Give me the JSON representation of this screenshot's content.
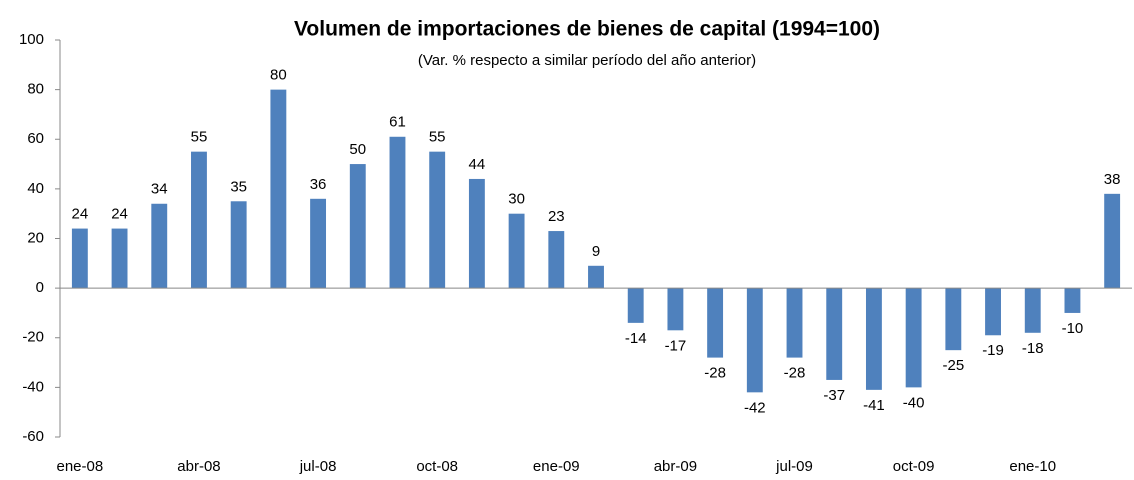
{
  "chart_data": {
    "type": "bar",
    "title": "Volumen de importaciones de bienes de capital (1994=100)",
    "subtitle": "(Var. % respecto a similar período del año anterior)",
    "categories": [
      "ene-08",
      null,
      null,
      "abr-08",
      null,
      null,
      "jul-08",
      null,
      null,
      "oct-08",
      null,
      null,
      "ene-09",
      null,
      null,
      "abr-09",
      null,
      null,
      "jul-09",
      null,
      null,
      "oct-09",
      null,
      null,
      "ene-10",
      null,
      null
    ],
    "values": [
      24,
      24,
      34,
      55,
      35,
      80,
      36,
      50,
      61,
      55,
      44,
      30,
      23,
      9,
      -14,
      -17,
      -28,
      -42,
      -28,
      -37,
      -41,
      -40,
      -25,
      -19,
      -18,
      -10,
      38
    ],
    "color": "#4f81bd",
    "ylim": [
      -60,
      100
    ],
    "yticks": [
      -60,
      -40,
      -20,
      0,
      20,
      40,
      60,
      80,
      100
    ],
    "grid": false
  }
}
